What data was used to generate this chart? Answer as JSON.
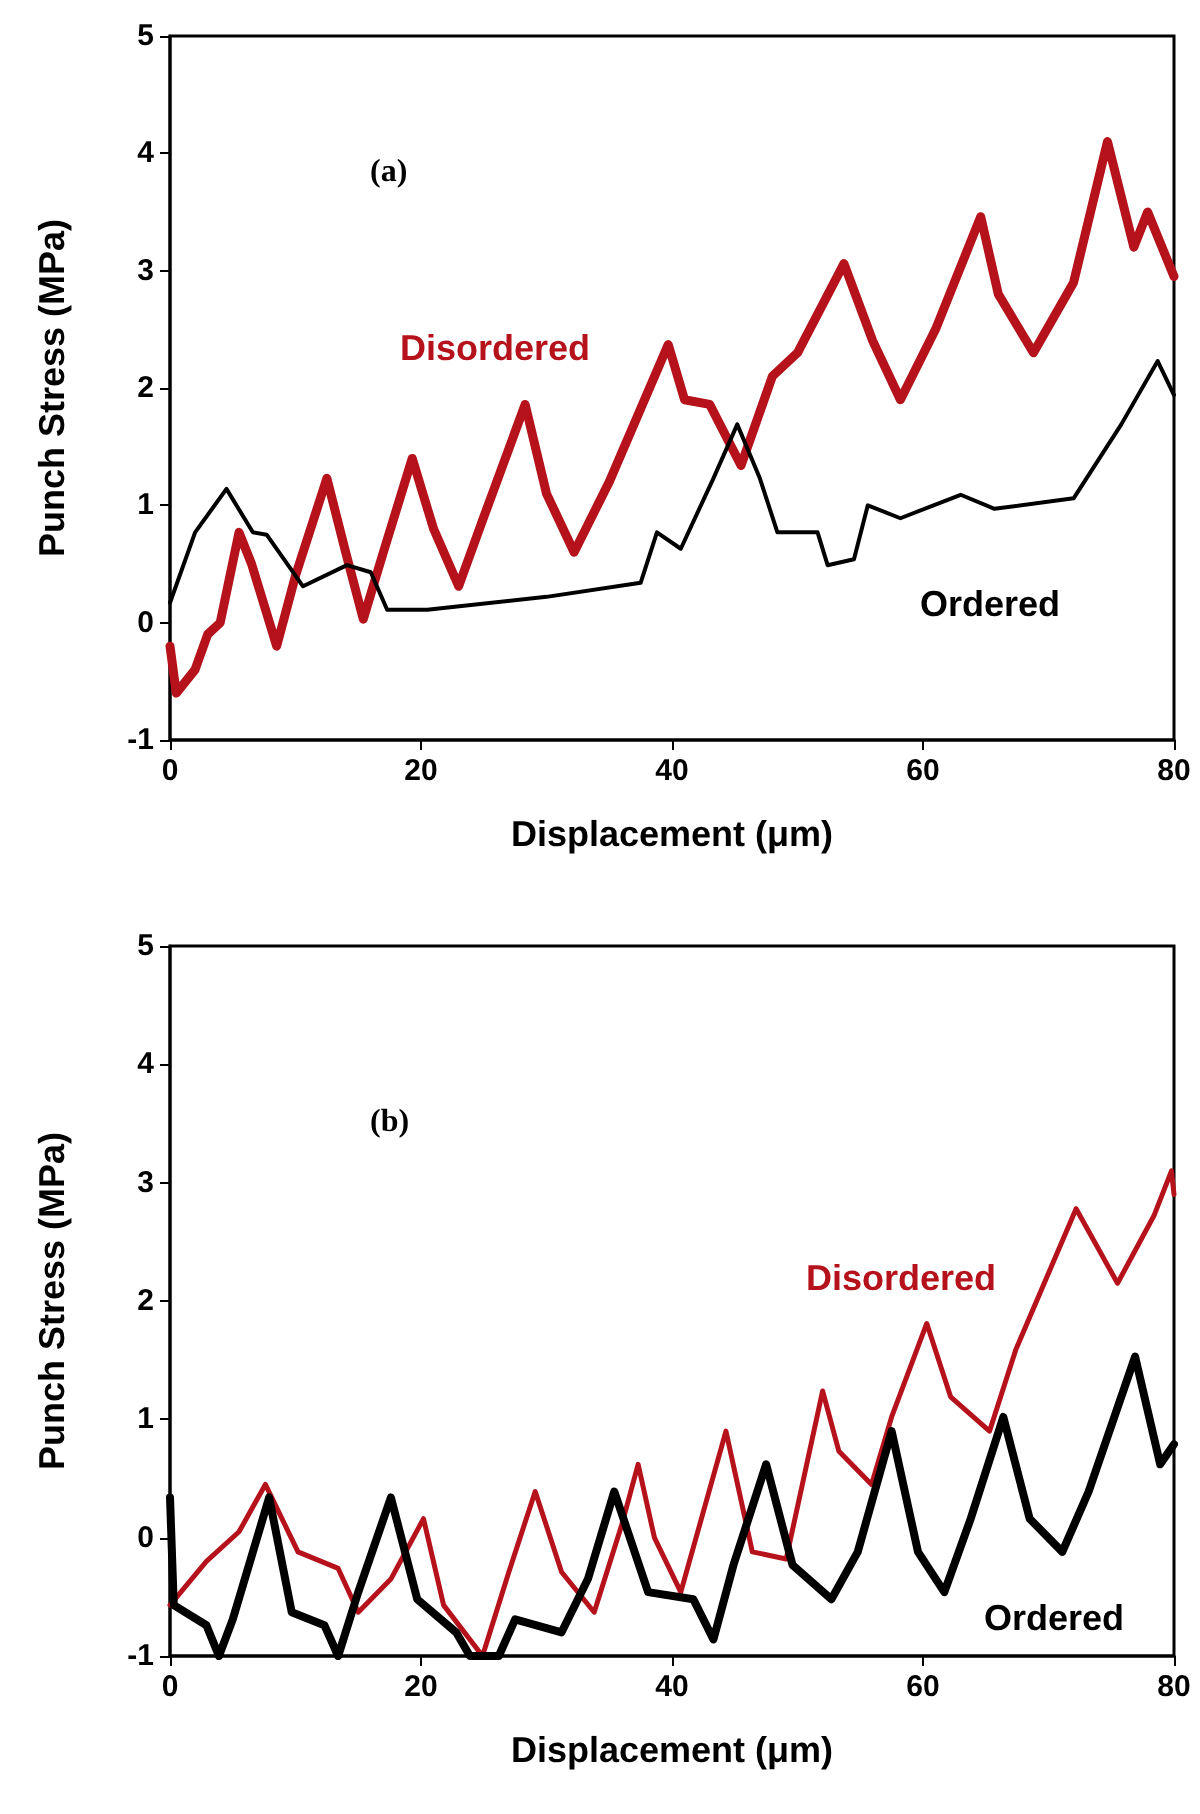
{
  "chart_data": [
    {
      "type": "line",
      "xlabel": "Displacement (μm)",
      "ylabel": "Punch Stress (MPa)",
      "annotations": [
        "(a)"
      ],
      "xlim": [
        0,
        80
      ],
      "xticks": [
        0,
        20,
        40,
        60,
        80
      ],
      "ylim": [
        -1,
        5
      ],
      "yticks": [
        -1,
        0,
        1,
        2,
        3,
        4,
        5
      ],
      "grid": false,
      "legend": false,
      "marker": "none",
      "line_style": "solid",
      "series": [
        {
          "name": "Disordered",
          "color": "#b5121b",
          "x": [
            0,
            0.5,
            2,
            3,
            4,
            5.5,
            6.5,
            8.5,
            10,
            12.5,
            14,
            15.4,
            17,
            19.3,
            21,
            23,
            25,
            28.3,
            30,
            32.2,
            35,
            39.7,
            41,
            43,
            45.5,
            48,
            50,
            53.7,
            56,
            58.2,
            61,
            64.6,
            66,
            68.8,
            72,
            74.7,
            76.8,
            77.9,
            80
          ],
          "values": [
            -0.2,
            -0.6,
            -0.4,
            -0.1,
            0.0,
            0.77,
            0.5,
            -0.2,
            0.4,
            1.23,
            0.6,
            0.03,
            0.6,
            1.4,
            0.8,
            0.31,
            0.9,
            1.86,
            1.1,
            0.6,
            1.2,
            2.37,
            1.9,
            1.86,
            1.34,
            2.1,
            2.3,
            3.06,
            2.4,
            1.9,
            2.5,
            3.46,
            2.8,
            2.3,
            2.9,
            4.1,
            3.2,
            3.5,
            2.95
          ]
        },
        {
          "name": "Ordered",
          "color": "#000000",
          "x": [
            0,
            2,
            4.5,
            6.6,
            7.7,
            10.6,
            14.1,
            16,
            17.3,
            20.5,
            30,
            37.5,
            38.8,
            40.7,
            43.3,
            45.2,
            47,
            48.4,
            51.6,
            52.4,
            54.5,
            55.6,
            58.2,
            63,
            65.7,
            72,
            75.8,
            78.7,
            80
          ],
          "values": [
            0.17,
            0.77,
            1.14,
            0.77,
            0.75,
            0.31,
            0.49,
            0.43,
            0.11,
            0.11,
            0.22,
            0.34,
            0.77,
            0.63,
            1.23,
            1.69,
            1.23,
            0.77,
            0.77,
            0.49,
            0.54,
            1.0,
            0.89,
            1.09,
            0.97,
            1.06,
            1.69,
            2.23,
            1.94
          ]
        }
      ]
    },
    {
      "type": "line",
      "xlabel": "Displacement (μm)",
      "ylabel": "Punch Stress (MPa)",
      "annotations": [
        "(b)"
      ],
      "xlim": [
        0,
        80
      ],
      "xticks": [
        0,
        20,
        40,
        60,
        80
      ],
      "ylim": [
        -1,
        5
      ],
      "yticks": [
        -1,
        0,
        1,
        2,
        3,
        4,
        5
      ],
      "grid": false,
      "legend": false,
      "marker": "none",
      "line_style": "solid",
      "series": [
        {
          "name": "Disordered",
          "color": "#b5121b",
          "x": [
            0,
            2.9,
            5.5,
            7.6,
            10.2,
            13.4,
            15,
            17.6,
            20.2,
            21.8,
            24.9,
            27,
            29.1,
            31.2,
            33.8,
            36,
            37.3,
            38.6,
            40.7,
            44.3,
            46.4,
            49.1,
            52,
            53.3,
            55.9,
            57.5,
            60.3,
            62.2,
            65.3,
            67.4,
            72.2,
            75.5,
            78.4,
            79.8,
            80
          ],
          "values": [
            -0.57,
            -0.2,
            0.05,
            0.45,
            -0.12,
            -0.26,
            -0.63,
            -0.35,
            0.16,
            -0.57,
            -1.0,
            -0.29,
            0.39,
            -0.29,
            -0.63,
            0.11,
            0.62,
            0.0,
            -0.46,
            0.9,
            -0.12,
            -0.18,
            1.24,
            0.73,
            0.45,
            1.02,
            1.81,
            1.19,
            0.9,
            1.59,
            2.78,
            2.15,
            2.72,
            3.1,
            2.9
          ]
        },
        {
          "name": "Ordered",
          "color": "#000000",
          "x": [
            0,
            0.3,
            2.9,
            3.9,
            5,
            7.9,
            9.7,
            12.3,
            13.4,
            15,
            17.6,
            19.7,
            22.8,
            23.9,
            26.2,
            27.5,
            31.2,
            33.3,
            35.4,
            38.1,
            41.7,
            43.3,
            44.9,
            47.5,
            49.6,
            52.7,
            54.8,
            57.5,
            59.6,
            61.7,
            63.8,
            66.4,
            68.5,
            71.1,
            73.2,
            76.9,
            78.9,
            80
          ],
          "values": [
            0.34,
            -0.57,
            -0.74,
            -1.0,
            -0.69,
            0.34,
            -0.63,
            -0.74,
            -1.0,
            -0.46,
            0.34,
            -0.52,
            -0.8,
            -1.0,
            -1.0,
            -0.69,
            -0.8,
            -0.35,
            0.39,
            -0.46,
            -0.52,
            -0.86,
            -0.23,
            0.62,
            -0.23,
            -0.52,
            -0.12,
            0.9,
            -0.12,
            -0.46,
            0.16,
            1.02,
            0.16,
            -0.12,
            0.39,
            1.53,
            0.62,
            0.79
          ]
        }
      ]
    }
  ]
}
